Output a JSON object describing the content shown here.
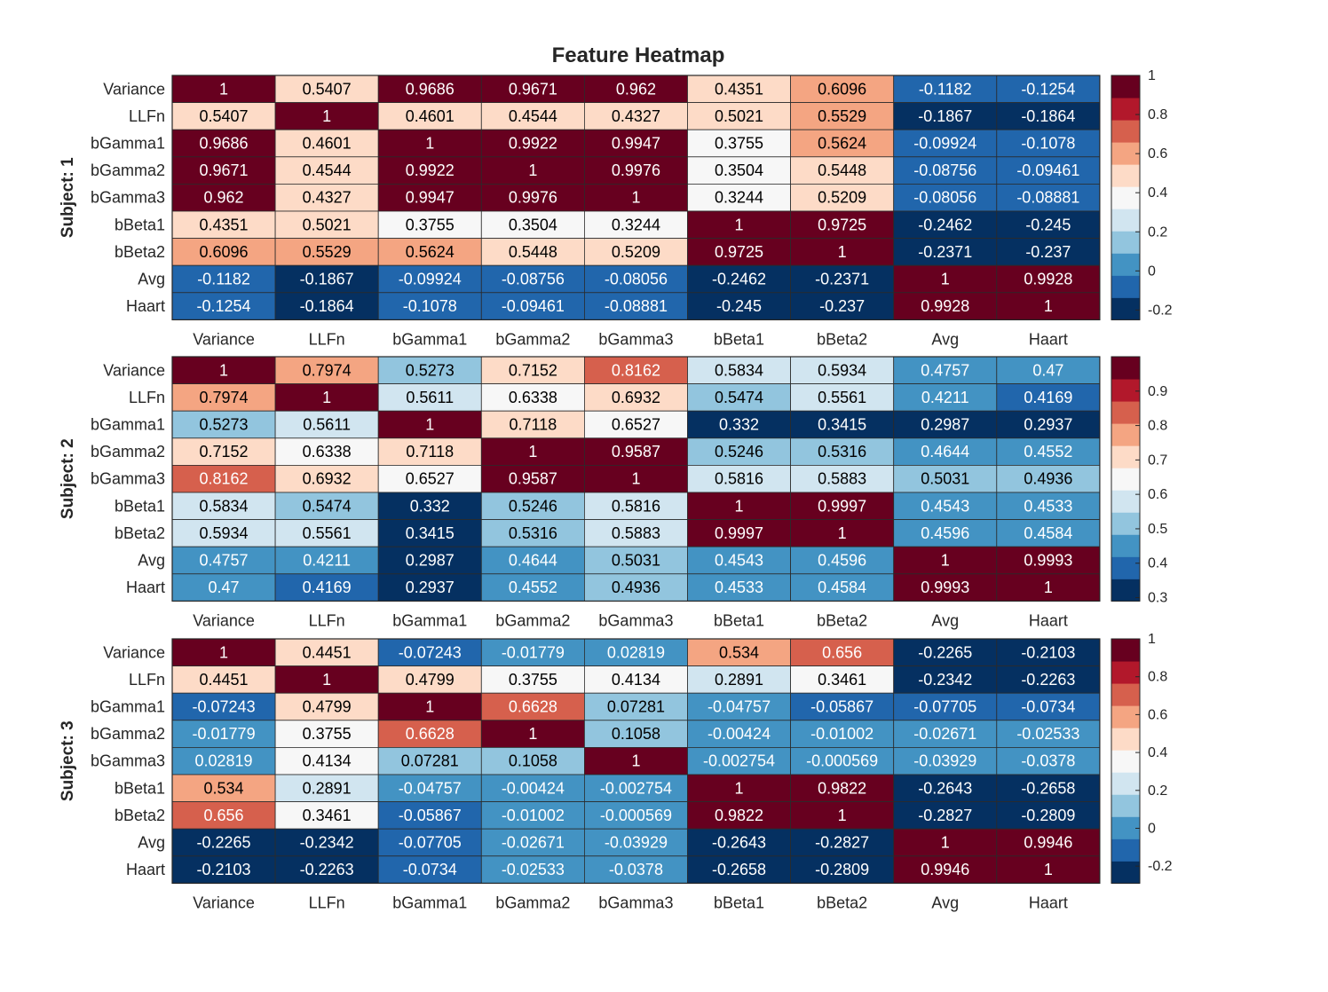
{
  "chart_data": {
    "type": "heatmap",
    "title": "Feature Heatmap",
    "features": [
      "Variance",
      "LLFn",
      "bGamma1",
      "bGamma2",
      "bGamma3",
      "bBeta1",
      "bBeta2",
      "Avg",
      "Haart"
    ],
    "colormap": [
      "#053061",
      "#2166ac",
      "#4393c3",
      "#92c5de",
      "#d1e5f0",
      "#f7f7f7",
      "#fddbc7",
      "#f4a582",
      "#d6604d",
      "#b2182b",
      "#67001f"
    ],
    "panels": [
      {
        "label": "Subject: 1",
        "clim": [
          -0.25,
          1
        ],
        "colorbar_ticks": [
          "-0.2",
          "0",
          "0.2",
          "0.4",
          "0.6",
          "0.8",
          "1"
        ],
        "values": [
          [
            "1",
            "0.5407",
            "0.9686",
            "0.9671",
            "0.962",
            "0.4351",
            "0.6096",
            "-0.1182",
            "-0.1254"
          ],
          [
            "0.5407",
            "1",
            "0.4601",
            "0.4544",
            "0.4327",
            "0.5021",
            "0.5529",
            "-0.1867",
            "-0.1864"
          ],
          [
            "0.9686",
            "0.4601",
            "1",
            "0.9922",
            "0.9947",
            "0.3755",
            "0.5624",
            "-0.09924",
            "-0.1078"
          ],
          [
            "0.9671",
            "0.4544",
            "0.9922",
            "1",
            "0.9976",
            "0.3504",
            "0.5448",
            "-0.08756",
            "-0.09461"
          ],
          [
            "0.962",
            "0.4327",
            "0.9947",
            "0.9976",
            "1",
            "0.3244",
            "0.5209",
            "-0.08056",
            "-0.08881"
          ],
          [
            "0.4351",
            "0.5021",
            "0.3755",
            "0.3504",
            "0.3244",
            "1",
            "0.9725",
            "-0.2462",
            "-0.245"
          ],
          [
            "0.6096",
            "0.5529",
            "0.5624",
            "0.5448",
            "0.5209",
            "0.9725",
            "1",
            "-0.2371",
            "-0.237"
          ],
          [
            "-0.1182",
            "-0.1867",
            "-0.09924",
            "-0.08756",
            "-0.08056",
            "-0.2462",
            "-0.2371",
            "1",
            "0.9928"
          ],
          [
            "-0.1254",
            "-0.1864",
            "-0.1078",
            "-0.09461",
            "-0.08881",
            "-0.245",
            "-0.237",
            "0.9928",
            "1"
          ]
        ]
      },
      {
        "label": "Subject: 2",
        "clim": [
          0.29,
          1
        ],
        "colorbar_ticks": [
          "0.3",
          "0.4",
          "0.5",
          "0.6",
          "0.7",
          "0.8",
          "0.9"
        ],
        "values": [
          [
            "1",
            "0.7974",
            "0.5273",
            "0.7152",
            "0.8162",
            "0.5834",
            "0.5934",
            "0.4757",
            "0.47"
          ],
          [
            "0.7974",
            "1",
            "0.5611",
            "0.6338",
            "0.6932",
            "0.5474",
            "0.5561",
            "0.4211",
            "0.4169"
          ],
          [
            "0.5273",
            "0.5611",
            "1",
            "0.7118",
            "0.6527",
            "0.332",
            "0.3415",
            "0.2987",
            "0.2937"
          ],
          [
            "0.7152",
            "0.6338",
            "0.7118",
            "1",
            "0.9587",
            "0.5246",
            "0.5316",
            "0.4644",
            "0.4552"
          ],
          [
            "0.8162",
            "0.6932",
            "0.6527",
            "0.9587",
            "1",
            "0.5816",
            "0.5883",
            "0.5031",
            "0.4936"
          ],
          [
            "0.5834",
            "0.5474",
            "0.332",
            "0.5246",
            "0.5816",
            "1",
            "0.9997",
            "0.4543",
            "0.4533"
          ],
          [
            "0.5934",
            "0.5561",
            "0.3415",
            "0.5316",
            "0.5883",
            "0.9997",
            "1",
            "0.4596",
            "0.4584"
          ],
          [
            "0.4757",
            "0.4211",
            "0.2987",
            "0.4644",
            "0.5031",
            "0.4543",
            "0.4596",
            "1",
            "0.9993"
          ],
          [
            "0.47",
            "0.4169",
            "0.2937",
            "0.4552",
            "0.4936",
            "0.4533",
            "0.4584",
            "0.9993",
            "1"
          ]
        ]
      },
      {
        "label": "Subject: 3",
        "clim": [
          -0.29,
          1
        ],
        "colorbar_ticks": [
          "-0.2",
          "0",
          "0.2",
          "0.4",
          "0.6",
          "0.8",
          "1"
        ],
        "values": [
          [
            "1",
            "0.4451",
            "-0.07243",
            "-0.01779",
            "0.02819",
            "0.534",
            "0.656",
            "-0.2265",
            "-0.2103"
          ],
          [
            "0.4451",
            "1",
            "0.4799",
            "0.3755",
            "0.4134",
            "0.2891",
            "0.3461",
            "-0.2342",
            "-0.2263"
          ],
          [
            "-0.07243",
            "0.4799",
            "1",
            "0.6628",
            "0.07281",
            "-0.04757",
            "-0.05867",
            "-0.07705",
            "-0.0734"
          ],
          [
            "-0.01779",
            "0.3755",
            "0.6628",
            "1",
            "0.1058",
            "-0.00424",
            "-0.01002",
            "-0.02671",
            "-0.02533"
          ],
          [
            "0.02819",
            "0.4134",
            "0.07281",
            "0.1058",
            "1",
            "-0.002754",
            "-0.000569",
            "-0.03929",
            "-0.0378"
          ],
          [
            "0.534",
            "0.2891",
            "-0.04757",
            "-0.00424",
            "-0.002754",
            "1",
            "0.9822",
            "-0.2643",
            "-0.2658"
          ],
          [
            "0.656",
            "0.3461",
            "-0.05867",
            "-0.01002",
            "-0.000569",
            "0.9822",
            "1",
            "-0.2827",
            "-0.2809"
          ],
          [
            "-0.2265",
            "-0.2342",
            "-0.07705",
            "-0.02671",
            "-0.03929",
            "-0.2643",
            "-0.2827",
            "1",
            "0.9946"
          ],
          [
            "-0.2103",
            "-0.2263",
            "-0.0734",
            "-0.02533",
            "-0.0378",
            "-0.2658",
            "-0.2809",
            "0.9946",
            "1"
          ]
        ]
      }
    ]
  }
}
